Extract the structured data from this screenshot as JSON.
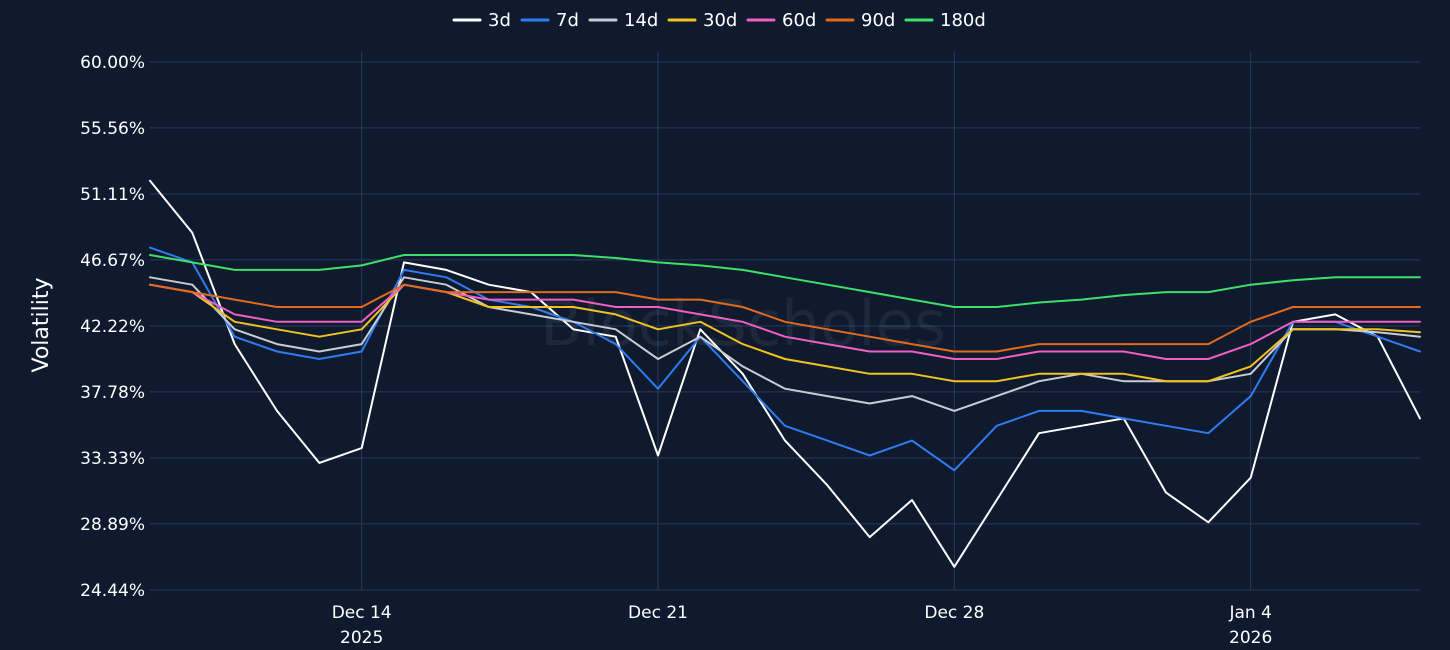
{
  "chart_data": {
    "type": "line",
    "title": "",
    "xlabel": "",
    "ylabel": "Volatility",
    "watermark": "BlockScholes",
    "grid": true,
    "legend_position": "top-center",
    "y_ticks": [
      "60.00%",
      "55.56%",
      "51.11%",
      "46.67%",
      "42.22%",
      "37.78%",
      "33.33%",
      "28.89%",
      "24.44%"
    ],
    "ylim": [
      24.44,
      60.0
    ],
    "x_ticks": [
      {
        "date": "2025-12-14",
        "label": "Dec 14",
        "sublabel": "2025"
      },
      {
        "date": "2025-12-21",
        "label": "Dec 21",
        "sublabel": ""
      },
      {
        "date": "2025-12-28",
        "label": "Dec 28",
        "sublabel": ""
      },
      {
        "date": "2026-01-04",
        "label": "Jan 4",
        "sublabel": "2026"
      }
    ],
    "xlim": [
      "2025-12-09",
      "2026-01-08"
    ],
    "x": [
      "2025-12-09",
      "2025-12-10",
      "2025-12-11",
      "2025-12-12",
      "2025-12-13",
      "2025-12-14",
      "2025-12-15",
      "2025-12-16",
      "2025-12-17",
      "2025-12-18",
      "2025-12-19",
      "2025-12-20",
      "2025-12-21",
      "2025-12-22",
      "2025-12-23",
      "2025-12-24",
      "2025-12-25",
      "2025-12-26",
      "2025-12-27",
      "2025-12-28",
      "2025-12-29",
      "2025-12-30",
      "2025-12-31",
      "2026-01-01",
      "2026-01-02",
      "2026-01-03",
      "2026-01-04",
      "2026-01-05",
      "2026-01-06",
      "2026-01-07",
      "2026-01-08"
    ],
    "series": [
      {
        "name": "3d",
        "color": "#ffffff",
        "values": [
          52.0,
          48.5,
          41.0,
          36.5,
          33.0,
          34.0,
          46.5,
          46.0,
          45.0,
          44.5,
          42.0,
          41.5,
          33.5,
          42.0,
          39.0,
          34.5,
          31.5,
          28.0,
          30.5,
          26.0,
          30.5,
          35.0,
          35.5,
          36.0,
          31.0,
          29.0,
          32.0,
          42.5,
          43.0,
          41.5,
          36.0
        ]
      },
      {
        "name": "7d",
        "color": "#2f7bf0",
        "values": [
          47.5,
          46.5,
          41.5,
          40.5,
          40.0,
          40.5,
          46.0,
          45.5,
          44.0,
          43.5,
          42.5,
          41.0,
          38.0,
          41.5,
          38.5,
          35.5,
          34.5,
          33.5,
          34.5,
          32.5,
          35.5,
          36.5,
          36.5,
          36.0,
          35.5,
          35.0,
          37.5,
          42.5,
          42.5,
          41.5,
          40.5
        ]
      },
      {
        "name": "14d",
        "color": "#c9ccd3",
        "values": [
          45.5,
          45.0,
          42.0,
          41.0,
          40.5,
          41.0,
          45.5,
          45.0,
          43.5,
          43.0,
          42.5,
          42.0,
          40.0,
          41.5,
          39.5,
          38.0,
          37.5,
          37.0,
          37.5,
          36.5,
          37.5,
          38.5,
          39.0,
          38.5,
          38.5,
          38.5,
          39.0,
          42.0,
          42.0,
          41.8,
          41.5
        ]
      },
      {
        "name": "30d",
        "color": "#f2c31f",
        "values": [
          45.0,
          44.5,
          42.5,
          42.0,
          41.5,
          42.0,
          45.0,
          44.5,
          43.5,
          43.5,
          43.5,
          43.0,
          42.0,
          42.5,
          41.0,
          40.0,
          39.5,
          39.0,
          39.0,
          38.5,
          38.5,
          39.0,
          39.0,
          39.0,
          38.5,
          38.5,
          39.5,
          42.0,
          42.0,
          42.0,
          41.8
        ]
      },
      {
        "name": "60d",
        "color": "#ee5fc1",
        "values": [
          45.0,
          44.5,
          43.0,
          42.5,
          42.5,
          42.5,
          45.0,
          44.5,
          44.0,
          44.0,
          44.0,
          43.5,
          43.5,
          43.0,
          42.5,
          41.5,
          41.0,
          40.5,
          40.5,
          40.0,
          40.0,
          40.5,
          40.5,
          40.5,
          40.0,
          40.0,
          41.0,
          42.5,
          42.5,
          42.5,
          42.5
        ]
      },
      {
        "name": "90d",
        "color": "#e36a1a",
        "values": [
          45.0,
          44.5,
          44.0,
          43.5,
          43.5,
          43.5,
          45.0,
          44.5,
          44.5,
          44.5,
          44.5,
          44.5,
          44.0,
          44.0,
          43.5,
          42.5,
          42.0,
          41.5,
          41.0,
          40.5,
          40.5,
          41.0,
          41.0,
          41.0,
          41.0,
          41.0,
          42.5,
          43.5,
          43.5,
          43.5,
          43.5
        ]
      },
      {
        "name": "180d",
        "color": "#3fe068",
        "values": [
          47.0,
          46.5,
          46.0,
          46.0,
          46.0,
          46.3,
          47.0,
          47.0,
          47.0,
          47.0,
          47.0,
          46.8,
          46.5,
          46.3,
          46.0,
          45.5,
          45.0,
          44.5,
          44.0,
          43.5,
          43.5,
          43.8,
          44.0,
          44.3,
          44.5,
          44.5,
          45.0,
          45.3,
          45.5,
          45.5,
          45.5
        ]
      }
    ]
  }
}
